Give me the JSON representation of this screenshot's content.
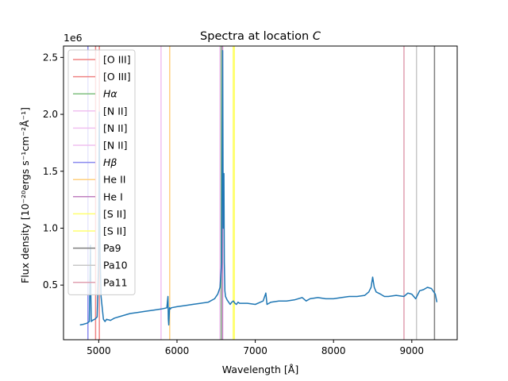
{
  "chart_data": {
    "type": "line",
    "title": "Spectra at location C",
    "title_prefix": "Spectra at location ",
    "title_italic": "C",
    "xlabel": "Wavelength [Å]",
    "ylabel": "Flux density [10⁻²⁰ergs s⁻¹cm⁻²Å⁻¹]",
    "y_offset_label": "1e6",
    "xlim": [
      4550,
      9580
    ],
    "ylim": [
      20000,
      2600000
    ],
    "x_ticks": [
      5000,
      6000,
      7000,
      8000,
      9000
    ],
    "x_tick_labels": [
      "5000",
      "6000",
      "7000",
      "8000",
      "9000"
    ],
    "y_ticks": [
      500000,
      1000000,
      1500000,
      2000000,
      2500000
    ],
    "y_tick_labels": [
      "0.5",
      "1.0",
      "1.5",
      "2.0",
      "2.5"
    ],
    "grid": false,
    "legend_position": "upper-left",
    "spectrum_color": "#1f77b4",
    "series": [
      {
        "name": "",
        "x": [
          4760,
          4800,
          4850,
          4880,
          4895,
          4900,
          4905,
          4920,
          4950,
          4980,
          4998,
          5007,
          5016,
          5030,
          5060,
          5080,
          5100,
          5150,
          5200,
          5300,
          5400,
          5500,
          5600,
          5700,
          5800,
          5870,
          5885,
          5890,
          5895,
          5905,
          5915,
          5925,
          6000,
          6100,
          6200,
          6300,
          6400,
          6480,
          6520,
          6550,
          6570,
          6583,
          6590,
          6600,
          6605,
          6612,
          6620,
          6640,
          6680,
          6700,
          6720,
          6740,
          6760,
          6780,
          6800,
          6900,
          7000,
          7100,
          7135,
          7150,
          7200,
          7300,
          7400,
          7500,
          7600,
          7650,
          7700,
          7800,
          7900,
          8000,
          8100,
          8200,
          8300,
          8400,
          8450,
          8480,
          8500,
          8520,
          8545,
          8600,
          8650,
          8700,
          8800,
          8900,
          8950,
          9000,
          9050,
          9100,
          9150,
          9200,
          9250,
          9300,
          9320
        ],
        "y": [
          150000,
          155000,
          165000,
          180000,
          850000,
          400000,
          180000,
          190000,
          200000,
          220000,
          700000,
          2020000,
          800000,
          400000,
          200000,
          180000,
          200000,
          190000,
          210000,
          230000,
          250000,
          260000,
          270000,
          280000,
          290000,
          300000,
          400000,
          200000,
          150000,
          300000,
          290000,
          300000,
          310000,
          320000,
          330000,
          340000,
          350000,
          380000,
          420000,
          480000,
          700000,
          2560000,
          1000000,
          1480000,
          700000,
          450000,
          400000,
          370000,
          330000,
          350000,
          360000,
          340000,
          330000,
          350000,
          340000,
          340000,
          330000,
          360000,
          430000,
          330000,
          350000,
          360000,
          360000,
          370000,
          390000,
          360000,
          380000,
          390000,
          380000,
          380000,
          390000,
          400000,
          400000,
          410000,
          440000,
          480000,
          570000,
          480000,
          440000,
          420000,
          400000,
          400000,
          410000,
          400000,
          430000,
          420000,
          380000,
          450000,
          460000,
          480000,
          470000,
          420000,
          350000
        ]
      }
    ],
    "lines": [
      {
        "label": "[O III]",
        "x": 4960,
        "color": "#ef8383"
      },
      {
        "label": "[O III]",
        "x": 5008,
        "color": "#ef8383"
      },
      {
        "label": "Hα",
        "x": 6563,
        "color": "#80c080",
        "italic": true
      },
      {
        "label": "[N II]",
        "x": 5796,
        "color": "#f0c0f0"
      },
      {
        "label": "[N II]",
        "x": 6549,
        "color": "#f0c0f0"
      },
      {
        "label": "[N II]",
        "x": 6585,
        "color": "#f0c0f0"
      },
      {
        "label": "Hβ",
        "x": 4862,
        "color": "#8a8aef",
        "italic": true
      },
      {
        "label": "He II",
        "x": 5907,
        "color": "#ffd080"
      },
      {
        "label": "He I",
        "x": 6580,
        "color": "#c080c0"
      },
      {
        "label": "[S II]",
        "x": 6718,
        "color": "#ffff70"
      },
      {
        "label": "[S II]",
        "x": 6733,
        "color": "#ffff70"
      },
      {
        "label": "Pa9",
        "x": 9290,
        "color": "#7f7f7f"
      },
      {
        "label": "Pa10",
        "x": 9060,
        "color": "#c8c8c8"
      },
      {
        "label": "Pa11",
        "x": 8900,
        "color": "#e0a0b0"
      }
    ]
  }
}
